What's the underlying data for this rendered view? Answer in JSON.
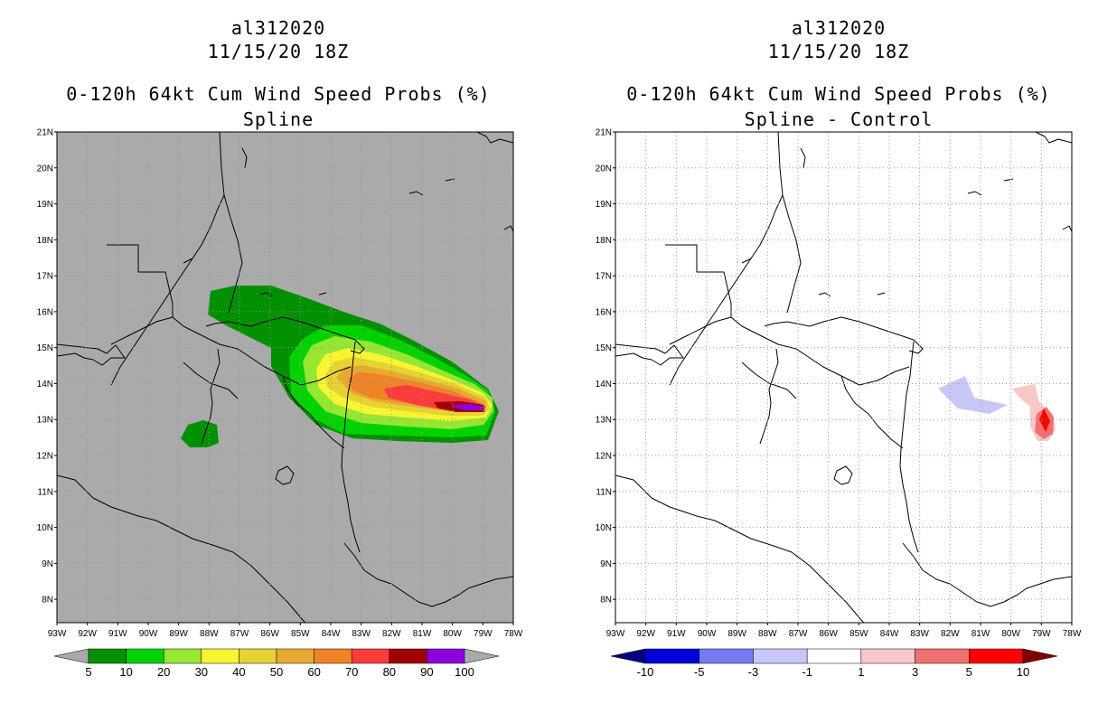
{
  "left": {
    "title_line1": "al312020",
    "title_line2": "11/15/20 18Z",
    "title_line3": "0-120h 64kt Cum Wind Speed Probs (%)",
    "title_line4": "Spline"
  },
  "right": {
    "title_line1": "al312020",
    "title_line2": "11/15/20 18Z",
    "title_line3": "0-120h 64kt Cum Wind Speed Probs (%)",
    "title_line4": "Spline - Control"
  },
  "lat_labels": [
    "21N",
    "20N",
    "19N",
    "18N",
    "17N",
    "16N",
    "15N",
    "14N",
    "13N",
    "12N",
    "11N",
    "10N",
    "9N",
    "8N"
  ],
  "lon_labels": [
    "93W",
    "92W",
    "91W",
    "90W",
    "89W",
    "88W",
    "87W",
    "86W",
    "85W",
    "84W",
    "83W",
    "82W",
    "81W",
    "80W",
    "79W",
    "78W"
  ],
  "left_colorbar": {
    "labels": [
      "5",
      "10",
      "20",
      "30",
      "40",
      "50",
      "60",
      "70",
      "80",
      "90",
      "100"
    ],
    "colors": [
      "#009000",
      "#00d200",
      "#96e632",
      "#f5f532",
      "#e6d232",
      "#e6aa32",
      "#f08228",
      "#fa3c3c",
      "#a00000",
      "#8c00dc"
    ],
    "under_color": "#aaaaaa",
    "over_color": "#aaaaaa"
  },
  "right_colorbar": {
    "labels": [
      "-10",
      "-5",
      "-3",
      "-1",
      "1",
      "3",
      "5",
      "10"
    ],
    "colors": [
      "#0000d8",
      "#7878f0",
      "#c8c8f8",
      "#ffffff",
      "#f8c8c8",
      "#f07070",
      "#ff0000"
    ],
    "under_color": "#000080",
    "over_color": "#800000"
  },
  "map_colors": {
    "left_background": "#aaaaaa",
    "right_background": "#ffffff"
  }
}
